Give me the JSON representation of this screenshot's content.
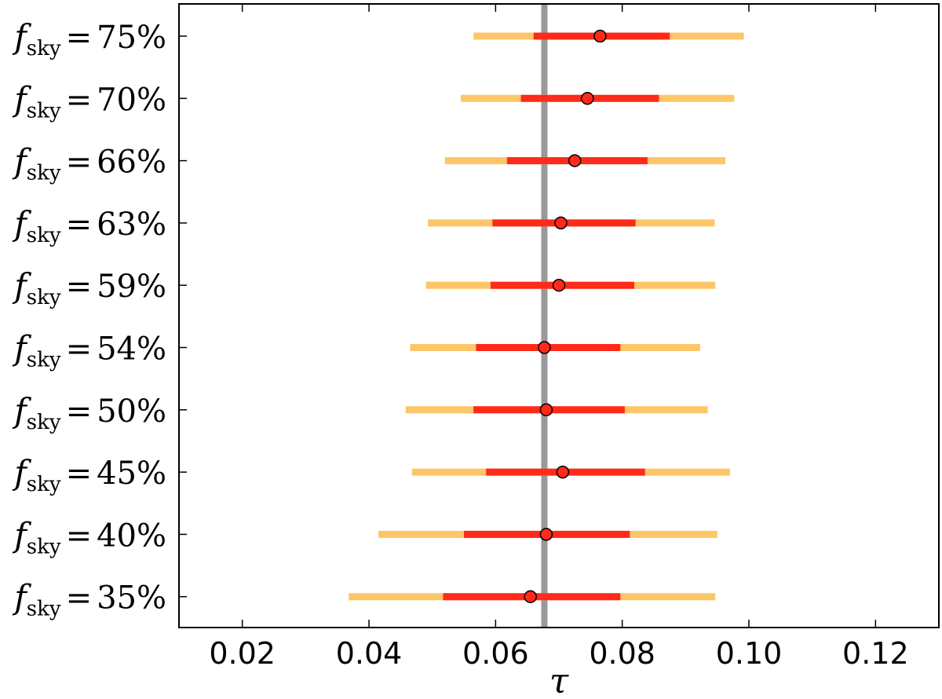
{
  "chart_data": {
    "type": "errorbar",
    "xlabel": "τ",
    "xlim": [
      0.01,
      0.13
    ],
    "xticks": [
      0.02,
      0.04,
      0.06,
      0.08,
      0.1,
      0.12
    ],
    "xtick_labels": [
      "0.02",
      "0.04",
      "0.06",
      "0.08",
      "0.10",
      "0.12"
    ],
    "reference_value": 0.0677,
    "colors": {
      "inner_interval": "#ff2a1a",
      "outer_interval": "#fdc667",
      "reference_line": "#999999",
      "marker_fill": "#ff2a1a",
      "marker_edge": "#000000"
    },
    "rows": [
      {
        "label_var": "f",
        "label_sub": "sky",
        "label_value": "75%",
        "center": 0.0765,
        "inner": [
          0.066,
          0.0875
        ],
        "outer": [
          0.0565,
          0.0992
        ]
      },
      {
        "label_var": "f",
        "label_sub": "sky",
        "label_value": "70%",
        "center": 0.0745,
        "inner": [
          0.064,
          0.0858
        ],
        "outer": [
          0.0545,
          0.0977
        ]
      },
      {
        "label_var": "f",
        "label_sub": "sky",
        "label_value": "66%",
        "center": 0.0725,
        "inner": [
          0.0618,
          0.084
        ],
        "outer": [
          0.052,
          0.0963
        ]
      },
      {
        "label_var": "f",
        "label_sub": "sky",
        "label_value": "63%",
        "center": 0.0703,
        "inner": [
          0.0595,
          0.0821
        ],
        "outer": [
          0.0493,
          0.0946
        ]
      },
      {
        "label_var": "f",
        "label_sub": "sky",
        "label_value": "59%",
        "center": 0.07,
        "inner": [
          0.0592,
          0.0819
        ],
        "outer": [
          0.049,
          0.0947
        ]
      },
      {
        "label_var": "f",
        "label_sub": "sky",
        "label_value": "54%",
        "center": 0.0677,
        "inner": [
          0.0569,
          0.0797
        ],
        "outer": [
          0.0465,
          0.0923
        ]
      },
      {
        "label_var": "f",
        "label_sub": "sky",
        "label_value": "50%",
        "center": 0.068,
        "inner": [
          0.0565,
          0.0804
        ],
        "outer": [
          0.0458,
          0.0935
        ]
      },
      {
        "label_var": "f",
        "label_sub": "sky",
        "label_value": "45%",
        "center": 0.0706,
        "inner": [
          0.0585,
          0.0836
        ],
        "outer": [
          0.0468,
          0.097
        ]
      },
      {
        "label_var": "f",
        "label_sub": "sky",
        "label_value": "40%",
        "center": 0.068,
        "inner": [
          0.055,
          0.0812
        ],
        "outer": [
          0.0415,
          0.095
        ]
      },
      {
        "label_var": "f",
        "label_sub": "sky",
        "label_value": "35%",
        "center": 0.0655,
        "inner": [
          0.0517,
          0.0797
        ],
        "outer": [
          0.0368,
          0.0947
        ]
      }
    ]
  }
}
